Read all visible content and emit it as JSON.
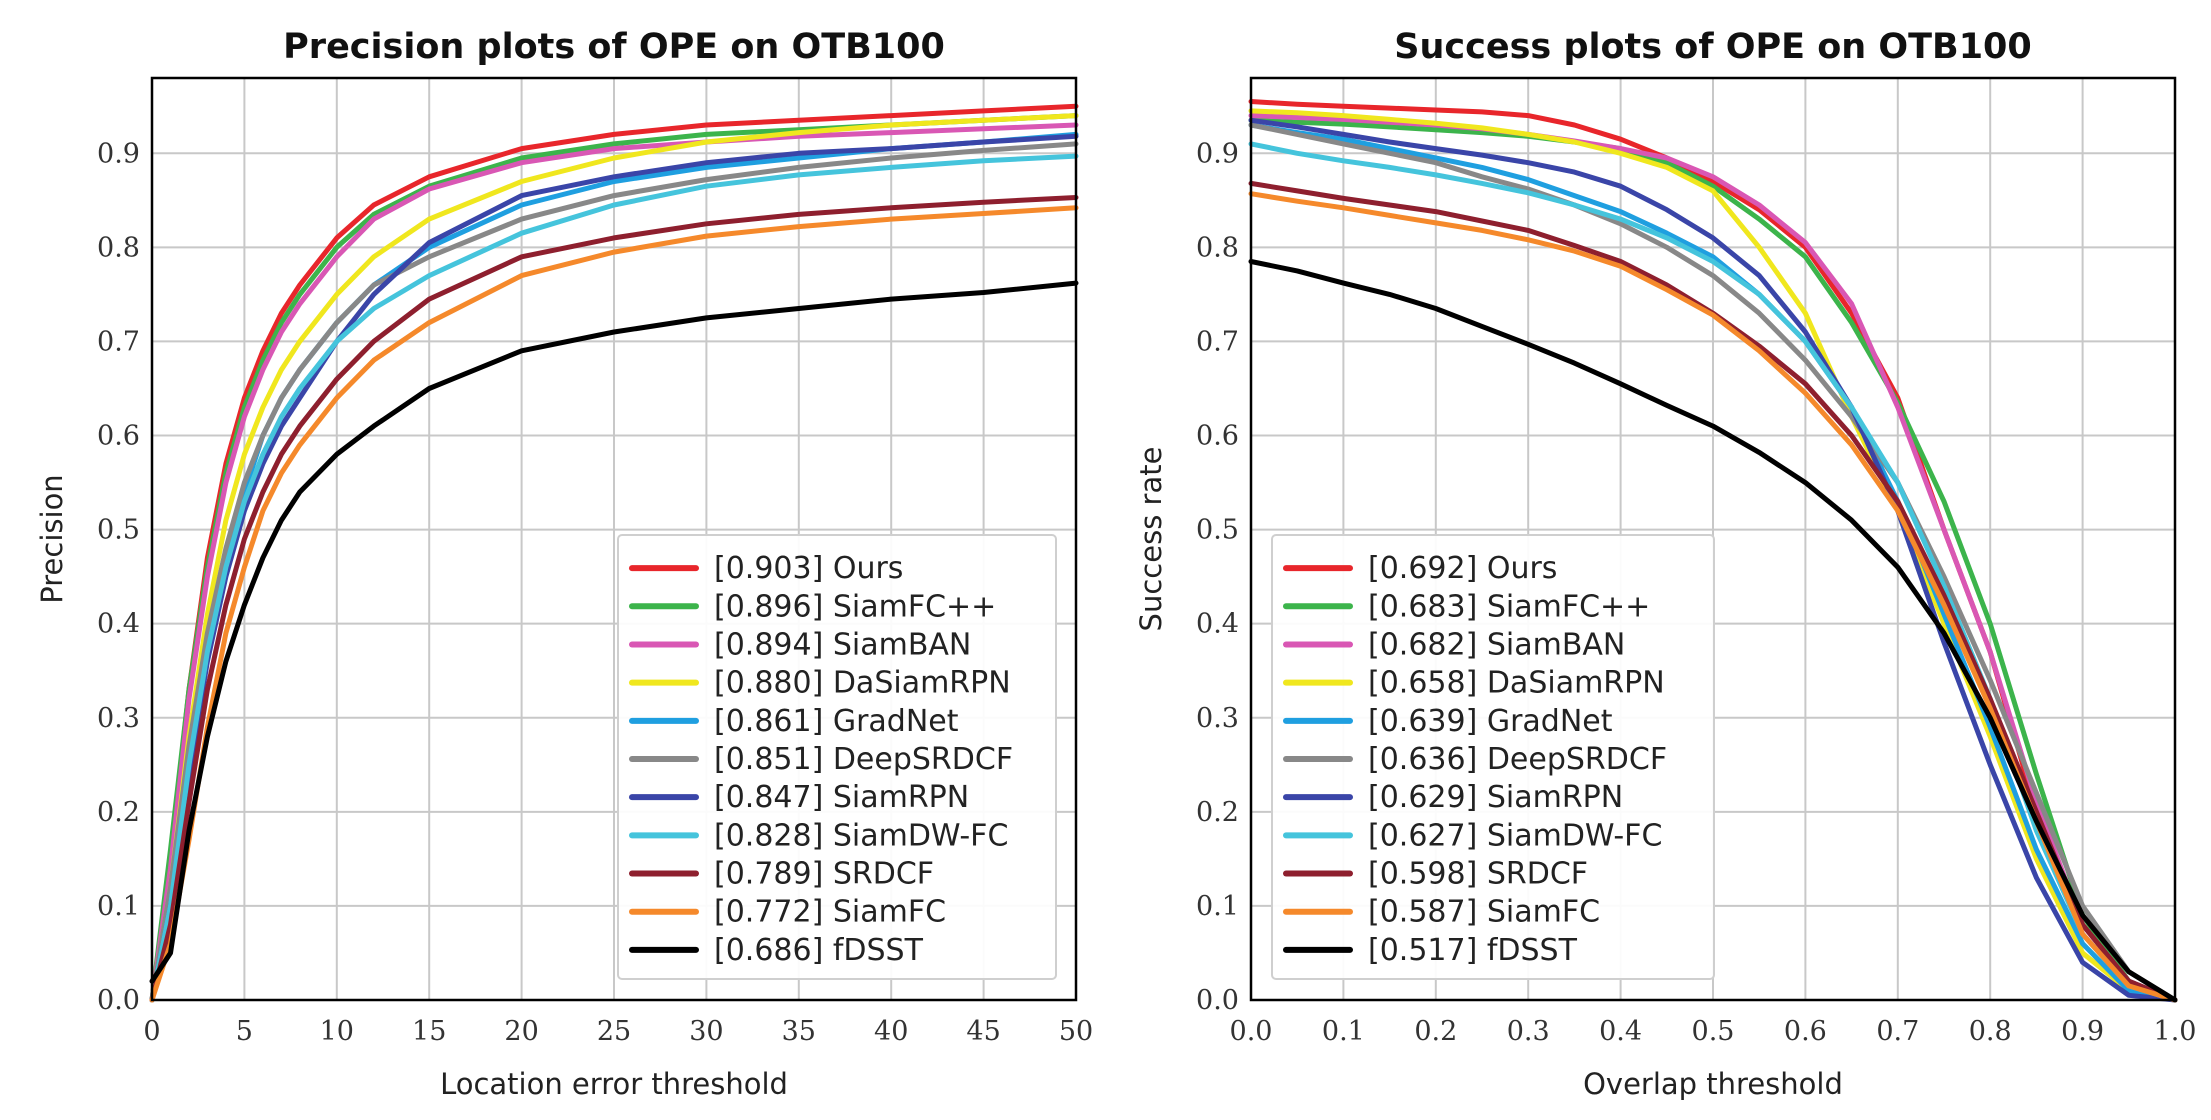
{
  "chart_data": [
    {
      "type": "line",
      "title": "Precision plots of OPE on OTB100",
      "xlabel": "Location error threshold",
      "ylabel": "Precision",
      "xlim": [
        0,
        50
      ],
      "ylim": [
        0,
        0.98
      ],
      "xticks": [
        0,
        5,
        10,
        15,
        20,
        25,
        30,
        35,
        40,
        45,
        50
      ],
      "yticks": [
        0.0,
        0.1,
        0.2,
        0.3,
        0.4,
        0.5,
        0.6,
        0.7,
        0.8,
        0.9
      ],
      "xtick_labels": [
        "0",
        "5",
        "10",
        "15",
        "20",
        "25",
        "30",
        "35",
        "40",
        "45",
        "50"
      ],
      "ytick_labels": [
        "0.0",
        "0.1",
        "0.2",
        "0.3",
        "0.4",
        "0.5",
        "0.6",
        "0.7",
        "0.8",
        "0.9"
      ],
      "grid": true,
      "legend_position": "bottom-right",
      "x": [
        0,
        1,
        2,
        3,
        4,
        5,
        6,
        7,
        8,
        10,
        12,
        15,
        20,
        25,
        30,
        35,
        40,
        45,
        50
      ],
      "series": [
        {
          "name": "Ours",
          "legend": "[0.903] Ours",
          "color": "#e8262b",
          "values": [
            0.0,
            0.15,
            0.33,
            0.47,
            0.57,
            0.64,
            0.69,
            0.73,
            0.76,
            0.81,
            0.845,
            0.875,
            0.905,
            0.92,
            0.93,
            0.935,
            0.94,
            0.945,
            0.95
          ]
        },
        {
          "name": "SiamFC++",
          "legend": "[0.896] SiamFC++",
          "color": "#3cb44b",
          "values": [
            0.0,
            0.16,
            0.33,
            0.46,
            0.56,
            0.63,
            0.68,
            0.72,
            0.75,
            0.8,
            0.835,
            0.865,
            0.895,
            0.91,
            0.92,
            0.925,
            0.93,
            0.935,
            0.94
          ]
        },
        {
          "name": "SiamBAN",
          "legend": "[0.894] SiamBAN",
          "color": "#d957b4",
          "values": [
            0.0,
            0.14,
            0.32,
            0.45,
            0.55,
            0.62,
            0.67,
            0.71,
            0.74,
            0.79,
            0.83,
            0.862,
            0.89,
            0.905,
            0.912,
            0.918,
            0.922,
            0.926,
            0.93
          ]
        },
        {
          "name": "DaSiamRPN",
          "legend": "[0.880] DaSiamRPN",
          "color": "#f0e71e",
          "values": [
            0.0,
            0.12,
            0.28,
            0.41,
            0.51,
            0.58,
            0.63,
            0.67,
            0.7,
            0.75,
            0.79,
            0.83,
            0.87,
            0.895,
            0.912,
            0.922,
            0.93,
            0.935,
            0.94
          ]
        },
        {
          "name": "GradNet",
          "legend": "[0.861] GradNet",
          "color": "#1f9fe0",
          "values": [
            0.0,
            0.11,
            0.26,
            0.38,
            0.47,
            0.54,
            0.6,
            0.64,
            0.67,
            0.72,
            0.76,
            0.8,
            0.845,
            0.87,
            0.885,
            0.895,
            0.905,
            0.912,
            0.92
          ]
        },
        {
          "name": "DeepSRDCF",
          "legend": "[0.851] DeepSRDCF",
          "color": "#888888",
          "values": [
            0.0,
            0.12,
            0.27,
            0.39,
            0.48,
            0.55,
            0.6,
            0.64,
            0.67,
            0.72,
            0.76,
            0.79,
            0.83,
            0.855,
            0.872,
            0.885,
            0.895,
            0.903,
            0.91
          ]
        },
        {
          "name": "SiamRPN",
          "legend": "[0.847] SiamRPN",
          "color": "#3a45a8",
          "values": [
            0.0,
            0.1,
            0.24,
            0.36,
            0.45,
            0.52,
            0.57,
            0.61,
            0.64,
            0.7,
            0.75,
            0.805,
            0.855,
            0.875,
            0.89,
            0.9,
            0.905,
            0.912,
            0.918
          ]
        },
        {
          "name": "SiamDW-FC",
          "legend": "[0.828] SiamDW-FC",
          "color": "#45c4dc",
          "values": [
            0.0,
            0.1,
            0.25,
            0.37,
            0.46,
            0.53,
            0.58,
            0.62,
            0.65,
            0.7,
            0.735,
            0.77,
            0.815,
            0.845,
            0.865,
            0.877,
            0.885,
            0.892,
            0.897
          ]
        },
        {
          "name": "SRDCF",
          "legend": "[0.789] SRDCF",
          "color": "#8e1f2e",
          "values": [
            0.0,
            0.08,
            0.21,
            0.33,
            0.42,
            0.49,
            0.54,
            0.58,
            0.61,
            0.66,
            0.7,
            0.745,
            0.79,
            0.81,
            0.825,
            0.835,
            0.842,
            0.848,
            0.853
          ]
        },
        {
          "name": "SiamFC",
          "legend": "[0.772] SiamFC",
          "color": "#f5892b",
          "values": [
            0.0,
            0.06,
            0.17,
            0.29,
            0.39,
            0.46,
            0.52,
            0.56,
            0.59,
            0.64,
            0.68,
            0.72,
            0.77,
            0.795,
            0.812,
            0.822,
            0.83,
            0.836,
            0.842
          ]
        },
        {
          "name": "fDSST",
          "legend": "[0.686] fDSST",
          "color": "#000000",
          "values": [
            0.02,
            0.05,
            0.18,
            0.28,
            0.36,
            0.42,
            0.47,
            0.51,
            0.54,
            0.58,
            0.61,
            0.65,
            0.69,
            0.71,
            0.725,
            0.735,
            0.745,
            0.752,
            0.762
          ]
        }
      ]
    },
    {
      "type": "line",
      "title": "Success plots of OPE on OTB100",
      "xlabel": "Overlap threshold",
      "ylabel": "Success rate",
      "xlim": [
        0,
        1
      ],
      "ylim": [
        0,
        0.98
      ],
      "xticks": [
        0.0,
        0.1,
        0.2,
        0.3,
        0.4,
        0.5,
        0.6,
        0.7,
        0.8,
        0.9,
        1.0
      ],
      "yticks": [
        0.0,
        0.1,
        0.2,
        0.3,
        0.4,
        0.5,
        0.6,
        0.7,
        0.8,
        0.9
      ],
      "xtick_labels": [
        "0.0",
        "0.1",
        "0.2",
        "0.3",
        "0.4",
        "0.5",
        "0.6",
        "0.7",
        "0.8",
        "0.9",
        "1.0"
      ],
      "ytick_labels": [
        "0.0",
        "0.1",
        "0.2",
        "0.3",
        "0.4",
        "0.5",
        "0.6",
        "0.7",
        "0.8",
        "0.9"
      ],
      "grid": true,
      "legend_position": "bottom-left",
      "x": [
        0,
        0.05,
        0.1,
        0.15,
        0.2,
        0.25,
        0.3,
        0.35,
        0.4,
        0.45,
        0.5,
        0.55,
        0.6,
        0.65,
        0.7,
        0.75,
        0.8,
        0.85,
        0.9,
        0.95,
        1.0
      ],
      "series": [
        {
          "name": "Ours",
          "legend": "[0.692] Ours",
          "color": "#e8262b",
          "values": [
            0.955,
            0.952,
            0.95,
            0.948,
            0.946,
            0.944,
            0.94,
            0.93,
            0.915,
            0.895,
            0.87,
            0.84,
            0.8,
            0.73,
            0.64,
            0.5,
            0.37,
            0.2,
            0.08,
            0.02,
            0.0
          ]
        },
        {
          "name": "SiamFC++",
          "legend": "[0.683] SiamFC++",
          "color": "#3cb44b",
          "values": [
            0.935,
            0.933,
            0.931,
            0.928,
            0.925,
            0.922,
            0.918,
            0.912,
            0.905,
            0.89,
            0.865,
            0.83,
            0.79,
            0.72,
            0.635,
            0.53,
            0.4,
            0.24,
            0.09,
            0.02,
            0.0
          ]
        },
        {
          "name": "SiamBAN",
          "legend": "[0.682] SiamBAN",
          "color": "#d957b4",
          "values": [
            0.94,
            0.938,
            0.936,
            0.933,
            0.93,
            0.926,
            0.92,
            0.913,
            0.905,
            0.895,
            0.875,
            0.845,
            0.805,
            0.74,
            0.63,
            0.5,
            0.37,
            0.21,
            0.08,
            0.02,
            0.0
          ]
        },
        {
          "name": "DaSiamRPN",
          "legend": "[0.658] DaSiamRPN",
          "color": "#f0e71e",
          "values": [
            0.945,
            0.943,
            0.94,
            0.936,
            0.932,
            0.927,
            0.92,
            0.912,
            0.9,
            0.885,
            0.86,
            0.8,
            0.73,
            0.62,
            0.52,
            0.4,
            0.28,
            0.15,
            0.05,
            0.01,
            0.0
          ]
        },
        {
          "name": "GradNet",
          "legend": "[0.639] GradNet",
          "color": "#1f9fe0",
          "values": [
            0.93,
            0.922,
            0.915,
            0.905,
            0.895,
            0.885,
            0.872,
            0.855,
            0.838,
            0.815,
            0.79,
            0.75,
            0.7,
            0.63,
            0.53,
            0.41,
            0.29,
            0.16,
            0.06,
            0.01,
            0.0
          ]
        },
        {
          "name": "DeepSRDCF",
          "legend": "[0.636] DeepSRDCF",
          "color": "#888888",
          "values": [
            0.93,
            0.92,
            0.91,
            0.9,
            0.89,
            0.875,
            0.862,
            0.845,
            0.825,
            0.8,
            0.77,
            0.73,
            0.68,
            0.62,
            0.55,
            0.45,
            0.34,
            0.22,
            0.1,
            0.03,
            0.0
          ]
        },
        {
          "name": "SiamRPN",
          "legend": "[0.629] SiamRPN",
          "color": "#3a45a8",
          "values": [
            0.935,
            0.928,
            0.92,
            0.912,
            0.905,
            0.898,
            0.89,
            0.88,
            0.865,
            0.84,
            0.81,
            0.77,
            0.71,
            0.63,
            0.52,
            0.38,
            0.25,
            0.13,
            0.04,
            0.005,
            0.0
          ]
        },
        {
          "name": "SiamDW-FC",
          "legend": "[0.627] SiamDW-FC",
          "color": "#45c4dc",
          "values": [
            0.91,
            0.9,
            0.892,
            0.885,
            0.877,
            0.868,
            0.858,
            0.845,
            0.83,
            0.81,
            0.785,
            0.75,
            0.7,
            0.63,
            0.55,
            0.44,
            0.32,
            0.18,
            0.07,
            0.015,
            0.0
          ]
        },
        {
          "name": "SRDCF",
          "legend": "[0.598] SRDCF",
          "color": "#8e1f2e",
          "values": [
            0.868,
            0.86,
            0.852,
            0.845,
            0.838,
            0.828,
            0.818,
            0.802,
            0.785,
            0.76,
            0.73,
            0.695,
            0.655,
            0.6,
            0.53,
            0.43,
            0.32,
            0.2,
            0.08,
            0.02,
            0.0
          ]
        },
        {
          "name": "SiamFC",
          "legend": "[0.587] SiamFC",
          "color": "#f5892b",
          "values": [
            0.857,
            0.849,
            0.842,
            0.834,
            0.826,
            0.818,
            0.808,
            0.796,
            0.78,
            0.755,
            0.728,
            0.69,
            0.645,
            0.59,
            0.52,
            0.42,
            0.31,
            0.19,
            0.07,
            0.015,
            0.0
          ]
        },
        {
          "name": "fDSST",
          "legend": "[0.517] fDSST",
          "color": "#000000",
          "values": [
            0.785,
            0.775,
            0.762,
            0.75,
            0.735,
            0.716,
            0.697,
            0.677,
            0.655,
            0.632,
            0.61,
            0.582,
            0.55,
            0.51,
            0.46,
            0.39,
            0.3,
            0.19,
            0.09,
            0.03,
            0.0
          ]
        }
      ]
    }
  ]
}
